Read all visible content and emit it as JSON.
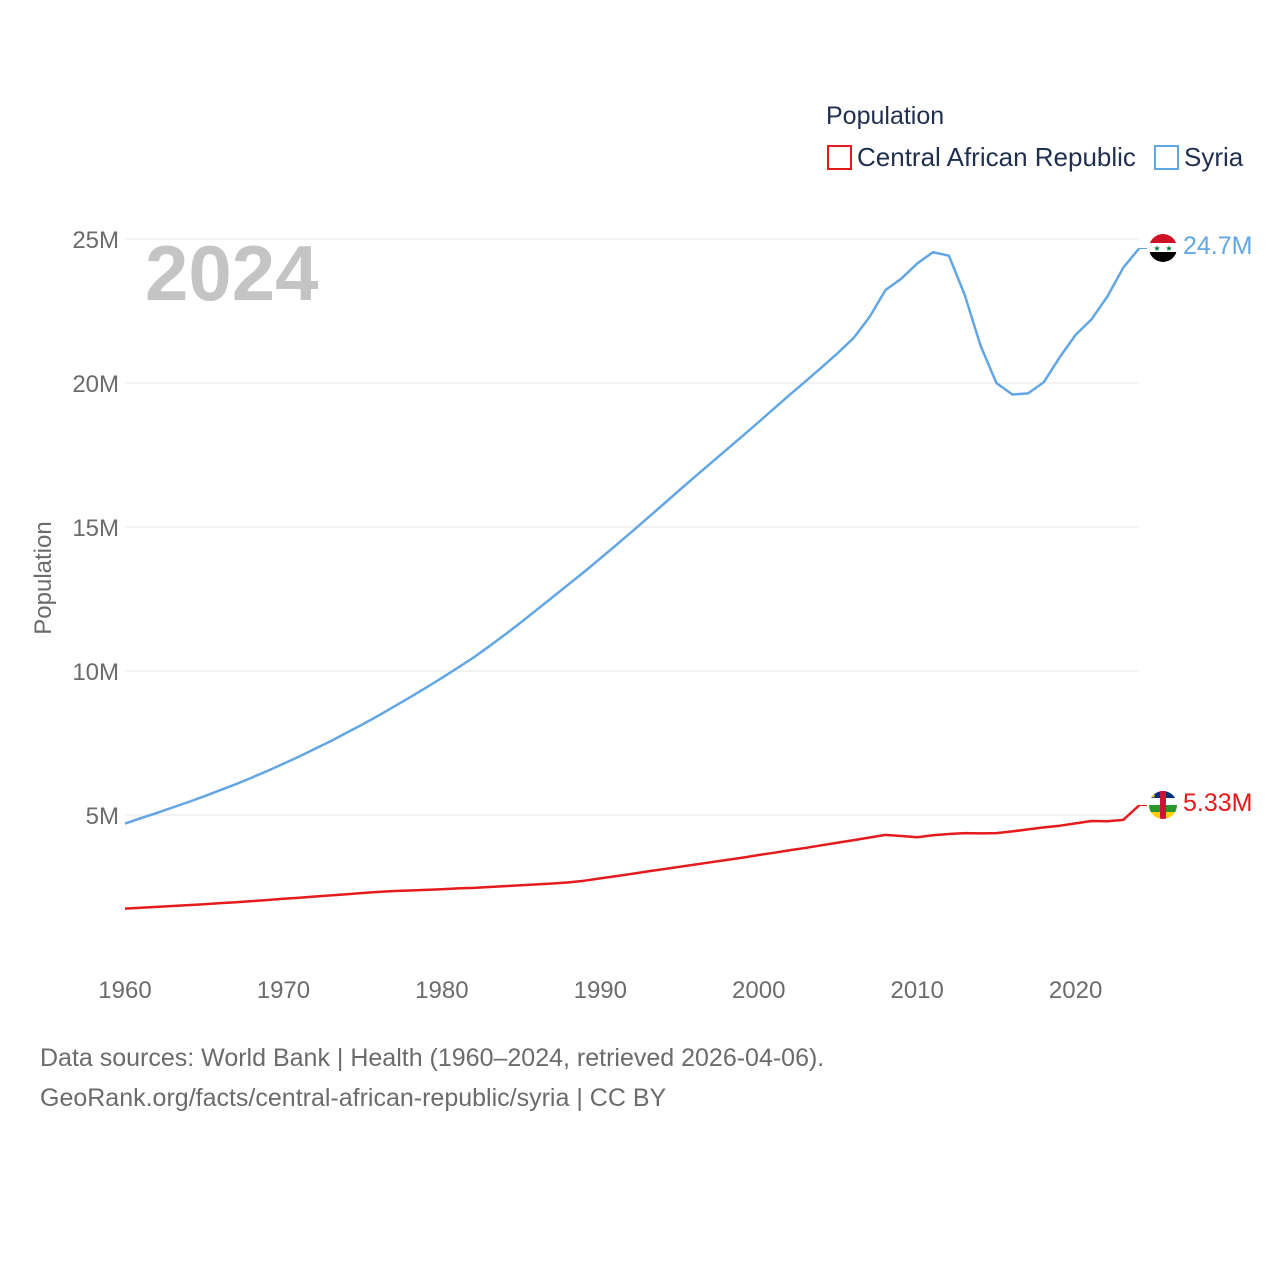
{
  "chart_data": {
    "type": "line",
    "legend_title": "Population",
    "ylabel": "Population",
    "year_label": "2024",
    "xlim": [
      1960,
      2024
    ],
    "ylim": [
      0,
      25000000
    ],
    "x_ticks": [
      1960,
      1970,
      1980,
      1990,
      2000,
      2010,
      2020
    ],
    "x_tick_labels": [
      "1960",
      "1970",
      "1980",
      "1990",
      "2000",
      "2010",
      "2020"
    ],
    "y_ticks": [
      5000000,
      10000000,
      15000000,
      20000000,
      25000000
    ],
    "y_tick_labels": [
      "5M",
      "10M",
      "15M",
      "20M",
      "25M"
    ],
    "x": [
      1960,
      1961,
      1962,
      1963,
      1964,
      1965,
      1966,
      1967,
      1968,
      1969,
      1970,
      1971,
      1972,
      1973,
      1974,
      1975,
      1976,
      1977,
      1978,
      1979,
      1980,
      1981,
      1982,
      1983,
      1984,
      1985,
      1986,
      1987,
      1988,
      1989,
      1990,
      1991,
      1992,
      1993,
      1994,
      1995,
      1996,
      1997,
      1998,
      1999,
      2000,
      2001,
      2002,
      2003,
      2004,
      2005,
      2006,
      2007,
      2008,
      2009,
      2010,
      2011,
      2012,
      2013,
      2014,
      2015,
      2016,
      2017,
      2018,
      2019,
      2020,
      2021,
      2022,
      2023,
      2024
    ],
    "series": [
      {
        "name": "Central African Republic",
        "color": "#e41a1c",
        "end_label": "5.33M",
        "flag": "central-african-republic-flag-icon",
        "values": [
          1750000,
          1780000,
          1810000,
          1840000,
          1870000,
          1900000,
          1940000,
          1970000,
          2010000,
          2050000,
          2090000,
          2130000,
          2170000,
          2210000,
          2250000,
          2290000,
          2330000,
          2360000,
          2380000,
          2400000,
          2420000,
          2450000,
          2470000,
          2500000,
          2530000,
          2560000,
          2590000,
          2620000,
          2660000,
          2720000,
          2800000,
          2880000,
          2960000,
          3040000,
          3120000,
          3200000,
          3280000,
          3360000,
          3440000,
          3520000,
          3610000,
          3690000,
          3780000,
          3860000,
          3950000,
          4040000,
          4130000,
          4220000,
          4310000,
          4270000,
          4230000,
          4300000,
          4340000,
          4370000,
          4360000,
          4370000,
          4430000,
          4500000,
          4570000,
          4630000,
          4710000,
          4790000,
          4780000,
          4830000,
          5330000
        ]
      },
      {
        "name": "Syria",
        "color": "#62a6e4",
        "end_label": "24.7M",
        "flag": "syria-flag-icon",
        "values": [
          4700000,
          4890000,
          5070000,
          5260000,
          5450000,
          5650000,
          5860000,
          6070000,
          6300000,
          6530000,
          6780000,
          7030000,
          7300000,
          7570000,
          7860000,
          8150000,
          8450000,
          8770000,
          9090000,
          9420000,
          9760000,
          10110000,
          10470000,
          10860000,
          11270000,
          11690000,
          12130000,
          12570000,
          13010000,
          13450000,
          13910000,
          14370000,
          14840000,
          15320000,
          15800000,
          16280000,
          16760000,
          17230000,
          17700000,
          18170000,
          18650000,
          19130000,
          19610000,
          20080000,
          20560000,
          21050000,
          21570000,
          22300000,
          23230000,
          23620000,
          24150000,
          24540000,
          24420000,
          23060000,
          21290000,
          20000000,
          19600000,
          19640000,
          20030000,
          20900000,
          21670000,
          22210000,
          23000000,
          24000000,
          24670000
        ]
      }
    ],
    "source_line1": "Data sources: World Bank | Health (1960–2024, retrieved 2026-04-06).",
    "source_line2": "GeoRank.org/facts/central-african-republic/syria | CC BY"
  }
}
